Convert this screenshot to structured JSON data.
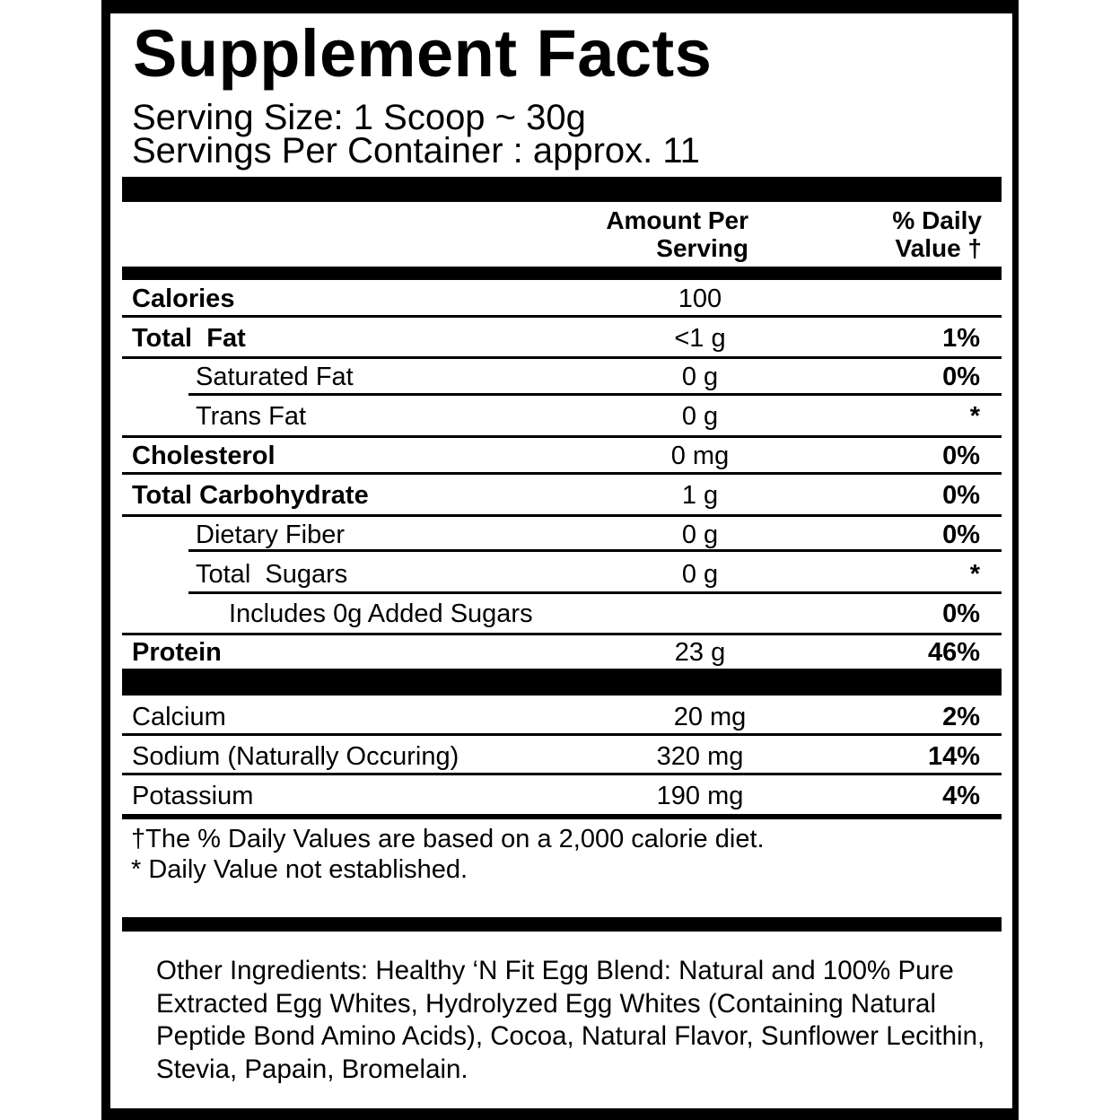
{
  "title": "Supplement Facts",
  "serving_size": "Serving Size: 1 Scoop ~ 30g",
  "servings_per_container": "Servings Per Container : approx. 11",
  "header": {
    "amount_line1": "Amount Per",
    "amount_line2": "Serving",
    "dv_line1": "% Daily",
    "dv_line2": "Value †"
  },
  "rows": [
    {
      "name": "Calories",
      "amount": "100",
      "dv": ""
    },
    {
      "name": "Total  Fat",
      "amount": "<1 g",
      "dv": "1%"
    },
    {
      "name": "Saturated Fat",
      "amount": "0 g",
      "dv": "0%"
    },
    {
      "name": "Trans Fat",
      "amount": "0 g",
      "dv": "*"
    },
    {
      "name": "Cholesterol",
      "amount": "0 mg",
      "dv": "0%"
    },
    {
      "name": "Total Carbohydrate",
      "amount": "1 g",
      "dv": "0%"
    },
    {
      "name": "Dietary Fiber",
      "amount": "0 g",
      "dv": "0%"
    },
    {
      "name": "Total  Sugars",
      "amount": "0 g",
      "dv": "*"
    },
    {
      "name": "Includes 0g Added Sugars",
      "amount": "",
      "dv": "0%"
    },
    {
      "name": "Protein",
      "amount": "23 g",
      "dv": "46%"
    }
  ],
  "minerals": [
    {
      "name": "Calcium",
      "amount": "20 mg",
      "dv": "2%"
    },
    {
      "name": "Sodium (Naturally Occuring)",
      "amount": "320 mg",
      "dv": "14%"
    },
    {
      "name": "Potassium",
      "amount": "190 mg",
      "dv": "4%"
    }
  ],
  "footnotes": [
    "†The % Daily Values are based on a 2,000 calorie diet.",
    "* Daily Value not established."
  ],
  "ingredients": "Other Ingredients: Healthy ‘N Fit Egg Blend: Natural and 100% Pure Extracted Egg Whites, Hydrolyzed Egg Whites (Containing Natural Peptide Bond Amino Acids), Cocoa, Natural Flavor, Sunflower Lecithin, Stevia, Papain, Bromelain."
}
